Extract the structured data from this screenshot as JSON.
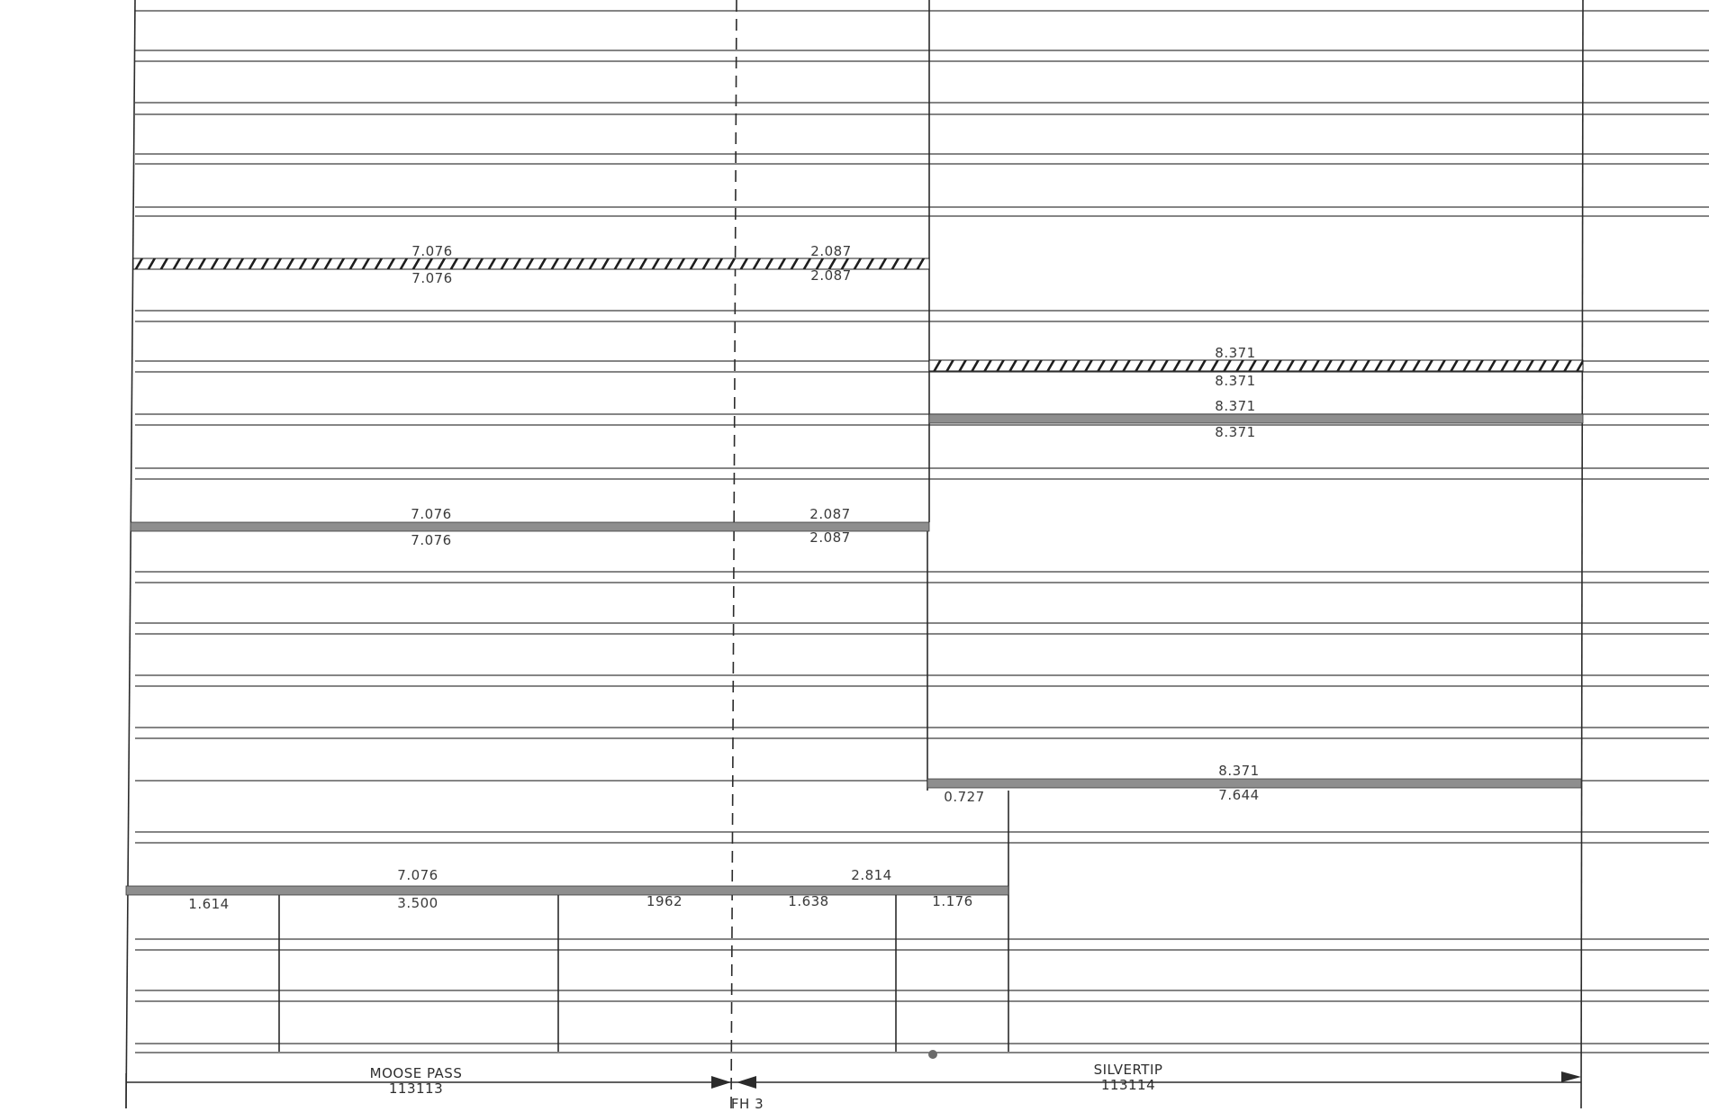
{
  "document": {
    "type": "straight-line diagram sheet",
    "colors": {
      "ink": "#2b2b2b",
      "band": "#8e8e8e",
      "rule": "#3c3c3c",
      "paper": "#ffffff"
    }
  },
  "segments": {
    "row_hatched_1": {
      "left_top": "7.076",
      "left_bottom": "7.076",
      "mid_top": "2.087",
      "mid_bottom": "2.087"
    },
    "row_hatched_2": {
      "right_top": "8.371",
      "right_bottom": "8.371"
    },
    "row_band_1": {
      "right_top": "8.371",
      "right_bottom": "8.371"
    },
    "row_band_2": {
      "left_top": "7.076",
      "left_bottom": "7.076",
      "mid_top": "2.087",
      "mid_bottom": "2.087"
    },
    "row_band_3": {
      "right_top": "8.371",
      "split_left": "0.727",
      "split_right": "7.644"
    },
    "row_band_4": {
      "left_top": "7.076",
      "mid_top": "2.814",
      "sub_values": [
        "1.614",
        "3.500",
        "1962",
        "1.638",
        "1.176"
      ]
    }
  },
  "footer": {
    "left_name": "MOOSE PASS",
    "left_code": "113113",
    "right_name": "SILVERTIP",
    "right_code": "113114",
    "center_label": "FH 3"
  }
}
